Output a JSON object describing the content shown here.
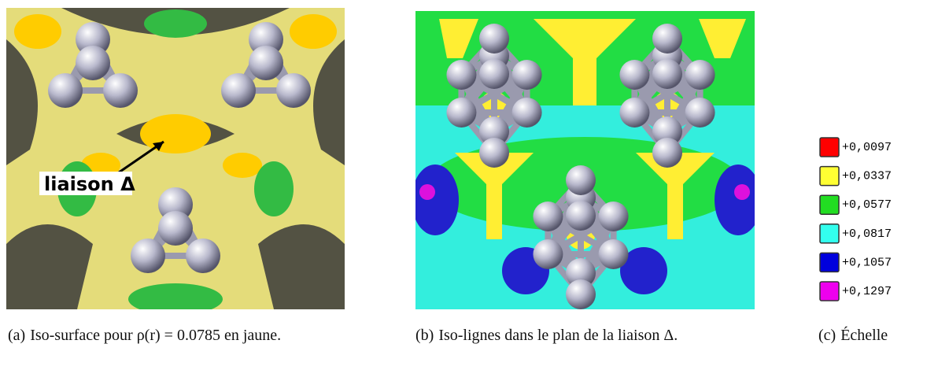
{
  "figures": [
    {
      "label": "(a)",
      "caption": "Iso-surface pour ρ(r) = 0.0785 en jaune.",
      "annotation": "liaison Δ"
    },
    {
      "label": "(b)",
      "caption": "Iso-lignes dans le plan de la liaison Δ."
    },
    {
      "label": "(c)",
      "caption": "Échelle"
    }
  ],
  "scale": [
    {
      "label": "+0,0097",
      "color": "#ff0000"
    },
    {
      "label": "+0,0337",
      "color": "#ffff33"
    },
    {
      "label": "+0,0577",
      "color": "#22dd22"
    },
    {
      "label": "+0,0817",
      "color": "#33ffee"
    },
    {
      "label": "+0,1057",
      "color": "#0000dd"
    },
    {
      "label": "+0,1297",
      "color": "#ee00ee"
    }
  ]
}
